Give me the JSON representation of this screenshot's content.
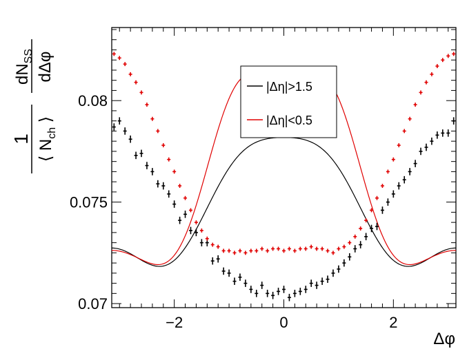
{
  "chart_data": {
    "type": "scatter",
    "title": "",
    "xlabel": "Δφ",
    "ylabel": {
      "prefix_top": "1",
      "prefix_bottom_open": "⟨ N",
      "prefix_bottom_sub": "ch",
      "prefix_bottom_close": " ⟩",
      "fraction_top_main": "dN",
      "fraction_top_sub": "SS",
      "fraction_bottom": "dΔφ"
    },
    "xlim": [
      -3.1416,
      3.1416
    ],
    "ylim": [
      0.0698,
      0.0836
    ],
    "x_ticks": [
      {
        "value": -2,
        "label": "−2"
      },
      {
        "value": 0,
        "label": "0"
      },
      {
        "value": 2,
        "label": "2"
      }
    ],
    "y_ticks": [
      {
        "value": 0.07,
        "label": "0.07"
      },
      {
        "value": 0.075,
        "label": "0.075"
      },
      {
        "value": 0.08,
        "label": "0.08"
      }
    ],
    "legend": {
      "position": "top-center",
      "entries": [
        {
          "label": "|Δη|>1.5",
          "color": "#000000"
        },
        {
          "label": "|Δη|<0.5",
          "color": "#e00000"
        }
      ]
    },
    "series": [
      {
        "name": "|Δη|>1.5",
        "color": "#000000",
        "fit": {
          "c0": 0.074633,
          "c1": 0.003325,
          "c2": 0.00083,
          "c3": -0.0006
        },
        "points": {
          "x": [
            -3.1,
            -3.0,
            -2.9,
            -2.8,
            -2.7,
            -2.6,
            -2.5,
            -2.4,
            -2.3,
            -2.2,
            -2.1,
            -2.0,
            -1.9,
            -1.8,
            -1.7,
            -1.6,
            -1.5,
            -1.4,
            -1.3,
            -1.2,
            -1.1,
            -1.0,
            -0.9,
            -0.8,
            -0.7,
            -0.6,
            -0.5,
            -0.4,
            -0.3,
            -0.2,
            -0.1,
            0.0,
            0.1,
            0.2,
            0.3,
            0.4,
            0.5,
            0.6,
            0.7,
            0.8,
            0.9,
            1.0,
            1.1,
            1.2,
            1.3,
            1.4,
            1.5,
            1.6,
            1.7,
            1.8,
            1.9,
            2.0,
            2.1,
            2.2,
            2.3,
            2.4,
            2.5,
            2.6,
            2.7,
            2.8,
            2.9,
            3.0,
            3.1
          ],
          "y": [
            0.0787,
            0.079,
            0.0785,
            0.0781,
            0.0773,
            0.0774,
            0.0768,
            0.0765,
            0.0759,
            0.0758,
            0.0754,
            0.0749,
            0.0741,
            0.0744,
            0.0736,
            0.0735,
            0.073,
            0.073,
            0.0721,
            0.0722,
            0.0716,
            0.0715,
            0.0711,
            0.0713,
            0.071,
            0.0707,
            0.0705,
            0.0709,
            0.0705,
            0.0704,
            0.0706,
            0.0707,
            0.0703,
            0.0705,
            0.0706,
            0.0707,
            0.071,
            0.0709,
            0.0711,
            0.0712,
            0.0715,
            0.0717,
            0.072,
            0.0723,
            0.0727,
            0.0729,
            0.0733,
            0.0737,
            0.0738,
            0.0746,
            0.075,
            0.0754,
            0.0758,
            0.0761,
            0.0765,
            0.0769,
            0.0775,
            0.0777,
            0.078,
            0.0783,
            0.0784,
            0.0784,
            0.079
          ],
          "err": [
            0.00018,
            0.00018,
            0.00018,
            0.00018,
            0.00018,
            0.00018,
            0.00018,
            0.00018,
            0.00018,
            0.00018,
            0.00018,
            0.00018,
            0.00018,
            0.00018,
            0.00018,
            0.00018,
            0.00018,
            0.00018,
            0.00018,
            0.00018,
            0.00018,
            0.00018,
            0.00018,
            0.00018,
            0.00018,
            0.00018,
            0.00018,
            0.00018,
            0.00018,
            0.00018,
            0.00018,
            0.00018,
            0.00018,
            0.00018,
            0.00018,
            0.00018,
            0.00018,
            0.00018,
            0.00018,
            0.00018,
            0.00018,
            0.00018,
            0.00018,
            0.00018,
            0.00018,
            0.00018,
            0.00018,
            0.00018,
            0.00018,
            0.00018,
            0.00018,
            0.00018,
            0.00018,
            0.00018,
            0.00018,
            0.00018,
            0.00018,
            0.00018,
            0.00018,
            0.00018,
            0.00018,
            0.00018,
            0.00018
          ]
        }
      },
      {
        "name": "|Δη|<0.5",
        "color": "#e00000",
        "fit": {
          "c0": 0.07619,
          "c1": 0.00525,
          "c2": 0.00078,
          "c3": -0.00121,
          "c4": -0.00031
        },
        "points": {
          "x": [
            -3.1,
            -3.0,
            -2.9,
            -2.8,
            -2.7,
            -2.6,
            -2.5,
            -2.4,
            -2.3,
            -2.2,
            -2.1,
            -2.0,
            -1.9,
            -1.8,
            -1.7,
            -1.6,
            -1.5,
            -1.4,
            -1.3,
            -1.2,
            -1.1,
            -1.0,
            -0.9,
            -0.8,
            -0.7,
            -0.6,
            -0.5,
            -0.4,
            -0.3,
            -0.2,
            -0.1,
            0.0,
            0.1,
            0.2,
            0.3,
            0.4,
            0.5,
            0.6,
            0.7,
            0.8,
            0.9,
            1.0,
            1.1,
            1.2,
            1.3,
            1.4,
            1.5,
            1.6,
            1.7,
            1.8,
            1.9,
            2.0,
            2.1,
            2.2,
            2.3,
            2.4,
            2.5,
            2.6,
            2.7,
            2.8,
            2.9,
            3.0,
            3.1
          ],
          "y": [
            0.0823,
            0.0821,
            0.0818,
            0.0813,
            0.0809,
            0.0804,
            0.0798,
            0.0791,
            0.0785,
            0.0778,
            0.0771,
            0.0765,
            0.0758,
            0.0752,
            0.0746,
            0.074,
            0.0736,
            0.0732,
            0.0729,
            0.0728,
            0.0726,
            0.0726,
            0.0725,
            0.0726,
            0.0725,
            0.0726,
            0.0726,
            0.0727,
            0.0726,
            0.0727,
            0.0727,
            0.0726,
            0.0727,
            0.0726,
            0.0727,
            0.0727,
            0.0728,
            0.0727,
            0.0727,
            0.0726,
            0.0725,
            0.0727,
            0.0728,
            0.073,
            0.0733,
            0.0737,
            0.0741,
            0.0746,
            0.0752,
            0.0758,
            0.0765,
            0.0771,
            0.0778,
            0.0785,
            0.0791,
            0.0798,
            0.0804,
            0.0809,
            0.0813,
            0.0817,
            0.082,
            0.0822,
            0.0823
          ],
          "err": [
            0.0001,
            0.0001,
            0.0001,
            0.0001,
            0.0001,
            0.0001,
            0.0001,
            0.0001,
            0.0001,
            0.0001,
            0.0001,
            0.0001,
            0.0001,
            0.0001,
            0.0001,
            0.0001,
            0.0001,
            0.0001,
            0.0001,
            0.0001,
            0.0001,
            0.0001,
            0.0001,
            0.0001,
            0.0001,
            0.0001,
            0.0001,
            0.0001,
            0.0001,
            0.0001,
            0.0001,
            0.0001,
            0.0001,
            0.0001,
            0.0001,
            0.0001,
            0.0001,
            0.0001,
            0.0001,
            0.0001,
            0.0001,
            0.0001,
            0.0001,
            0.0001,
            0.0001,
            0.0001,
            0.0001,
            0.0001,
            0.0001,
            0.0001,
            0.0001,
            0.0001,
            0.0001,
            0.0001,
            0.0001,
            0.0001,
            0.0001,
            0.0001,
            0.0001,
            0.0001,
            0.0001,
            0.0001,
            0.0001
          ]
        }
      }
    ]
  }
}
